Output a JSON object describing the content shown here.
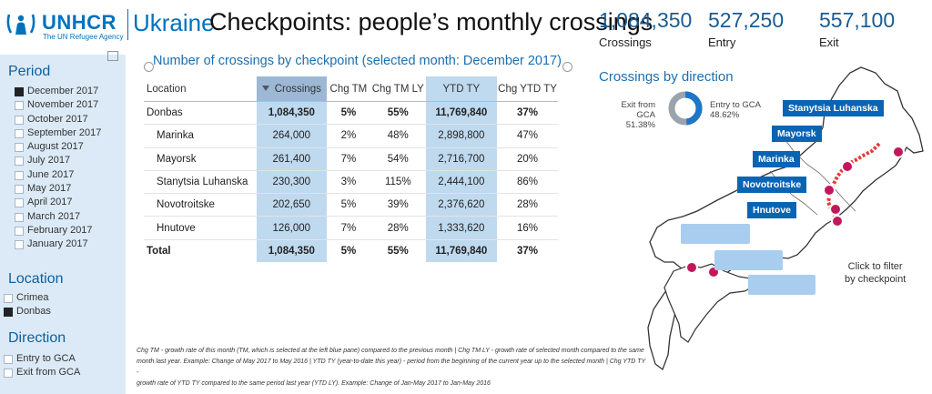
{
  "header": {
    "org": "UNHCR",
    "org_tagline": "The UN Refugee Agency",
    "country": "Ukraine",
    "title": "Checkpoints: people’s monthly crossings"
  },
  "kpis": [
    {
      "value": "1,084,350",
      "label": "Crossings"
    },
    {
      "value": "527,250",
      "label": "Entry"
    },
    {
      "value": "557,100",
      "label": "Exit"
    }
  ],
  "slicers": {
    "period": {
      "title": "Period",
      "items": [
        {
          "label": "December 2017",
          "checked": true
        },
        {
          "label": "November 2017",
          "checked": false
        },
        {
          "label": "October 2017",
          "checked": false
        },
        {
          "label": "September 2017",
          "checked": false
        },
        {
          "label": "August 2017",
          "checked": false
        },
        {
          "label": "July 2017",
          "checked": false
        },
        {
          "label": "June 2017",
          "checked": false
        },
        {
          "label": "May 2017",
          "checked": false
        },
        {
          "label": "April 2017",
          "checked": false
        },
        {
          "label": "March 2017",
          "checked": false
        },
        {
          "label": "February 2017",
          "checked": false
        },
        {
          "label": "January 2017",
          "checked": false
        }
      ]
    },
    "location": {
      "title": "Location",
      "items": [
        {
          "label": "Crimea",
          "checked": false
        },
        {
          "label": "Donbas",
          "checked": true
        }
      ]
    },
    "direction": {
      "title": "Direction",
      "items": [
        {
          "label": "Entry to GCA",
          "checked": false
        },
        {
          "label": "Exit from GCA",
          "checked": false
        }
      ]
    }
  },
  "table": {
    "title": "Number of crossings by checkpoint (selected month: December 2017)",
    "columns": [
      "Location",
      "Crossings",
      "Chg TM",
      "Chg TM LY",
      "YTD TY",
      "Chg YTD TY"
    ],
    "rows": [
      {
        "kind": "group",
        "cells": [
          "Donbas",
          "1,084,350",
          "5%",
          "55%",
          "11,769,840",
          "37%"
        ]
      },
      {
        "kind": "sub",
        "cells": [
          "Marinka",
          "264,000",
          "2%",
          "48%",
          "2,898,800",
          "47%"
        ]
      },
      {
        "kind": "sub",
        "cells": [
          "Mayorsk",
          "261,400",
          "7%",
          "54%",
          "2,716,700",
          "20%"
        ]
      },
      {
        "kind": "sub",
        "cells": [
          "Stanytsia Luhanska",
          "230,300",
          "3%",
          "115%",
          "2,444,100",
          "86%"
        ]
      },
      {
        "kind": "sub",
        "cells": [
          "Novotroitske",
          "202,650",
          "5%",
          "39%",
          "2,376,620",
          "28%"
        ]
      },
      {
        "kind": "sub",
        "cells": [
          "Hnutove",
          "126,000",
          "7%",
          "28%",
          "1,333,620",
          "16%"
        ]
      },
      {
        "kind": "total",
        "cells": [
          "Total",
          "1,084,350",
          "5%",
          "55%",
          "11,769,840",
          "37%"
        ]
      }
    ]
  },
  "note": {
    "line1": "Chg TM - growth rate of this month (TM, which is selected at the left blue pane) compared to the previous month | Chg TM LY - growth rate of selected month compared to the same",
    "line2": "month last year. Example: Change of May 2017 to May 2016 | YTD TY (year-to-date this year) - period from the beginning of the current year up to the selected month | Chg YTD TY -",
    "line3": "growth rate of YTD TY compared to the same period last year (YTD LY). Example: Change of Jan-May 2017 to Jan-May 2016"
  },
  "direction": {
    "title": "Crossings by direction",
    "exit_label": "Exit from GCA",
    "exit_pct": "51.38%",
    "entry_label": "Entry to GCA",
    "entry_pct": "48.62%",
    "exit_share": 0.5138,
    "entry_share": 0.4862,
    "exit_color": "#9aa4ad",
    "entry_color": "#1d76c8"
  },
  "map": {
    "checkpoints": [
      "Stanytsia Luhanska",
      "Mayorsk",
      "Marinka",
      "Novotroitske",
      "Hnutove"
    ],
    "hint_line1": "Click to filter",
    "hint_line2": "by checkpoint",
    "accent": "#0a64b4",
    "marker_color": "#c2185b",
    "line_color": "#e53935"
  }
}
